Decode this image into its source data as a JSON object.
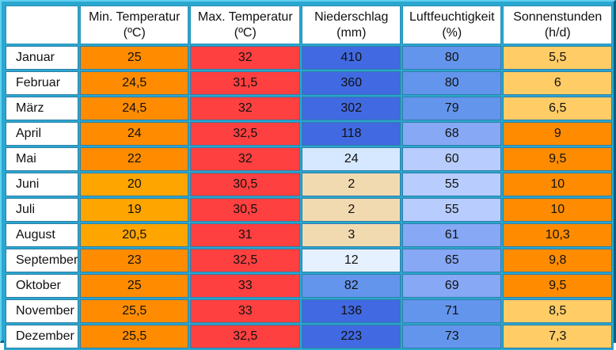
{
  "headers": {
    "min_temp": [
      "Min. Temperatur",
      "(ºC)"
    ],
    "max_temp": [
      "Max. Temperatur",
      "(ºC)"
    ],
    "precip": [
      "Niederschlag",
      "(mm)"
    ],
    "humidity": [
      "Luftfeuchtigkeit",
      "(%)"
    ],
    "sun": [
      "Sonnenstunden",
      "(h/d)"
    ]
  },
  "rows": [
    {
      "month": "Januar",
      "min": "25",
      "max": "32",
      "precip": "410",
      "humidity": "80",
      "sun": "5,5"
    },
    {
      "month": "Februar",
      "min": "24,5",
      "max": "31,5",
      "precip": "360",
      "humidity": "80",
      "sun": "6"
    },
    {
      "month": "März",
      "min": "24,5",
      "max": "32",
      "precip": "302",
      "humidity": "79",
      "sun": "6,5"
    },
    {
      "month": "April",
      "min": "24",
      "max": "32,5",
      "precip": "118",
      "humidity": "68",
      "sun": "9"
    },
    {
      "month": "Mai",
      "min": "22",
      "max": "32",
      "precip": "24",
      "humidity": "60",
      "sun": "9,5"
    },
    {
      "month": "Juni",
      "min": "20",
      "max": "30,5",
      "precip": "2",
      "humidity": "55",
      "sun": "10"
    },
    {
      "month": "Juli",
      "min": "19",
      "max": "30,5",
      "precip": "2",
      "humidity": "55",
      "sun": "10"
    },
    {
      "month": "August",
      "min": "20,5",
      "max": "31",
      "precip": "3",
      "humidity": "61",
      "sun": "10,3"
    },
    {
      "month": "September",
      "min": "23",
      "max": "32,5",
      "precip": "12",
      "humidity": "65",
      "sun": "9,8"
    },
    {
      "month": "Oktober",
      "min": "25",
      "max": "33",
      "precip": "82",
      "humidity": "69",
      "sun": "9,5"
    },
    {
      "month": "November",
      "min": "25,5",
      "max": "33",
      "precip": "136",
      "humidity": "71",
      "sun": "8,5"
    },
    {
      "month": "Dezember",
      "min": "25,5",
      "max": "32,5",
      "precip": "223",
      "humidity": "73",
      "sun": "7,3"
    }
  ],
  "colors": {
    "frame": "#2aa7cf",
    "min_temp": "#ff8c00",
    "max_temp": "#ff4040",
    "precip_high": "#4169e1",
    "sun": "#ffcc66"
  }
}
